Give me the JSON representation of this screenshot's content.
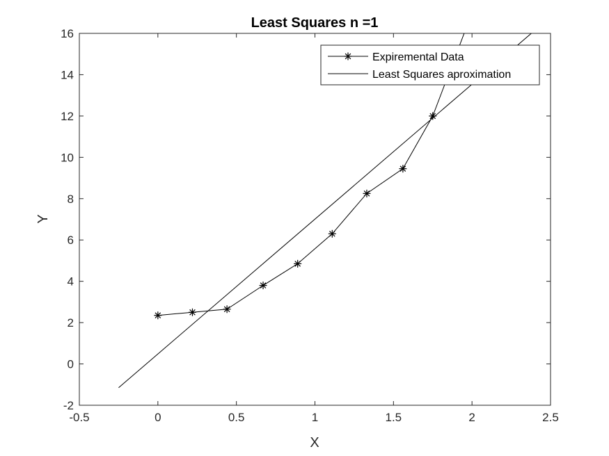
{
  "chart_data": {
    "type": "line",
    "title": "Least Squares n =1",
    "xlabel": "X",
    "ylabel": "Y",
    "xlim": [
      -0.5,
      2.5
    ],
    "ylim": [
      -2,
      16
    ],
    "xticks": [
      -0.5,
      0,
      0.5,
      1,
      1.5,
      2,
      2.5
    ],
    "yticks": [
      -2,
      0,
      2,
      4,
      6,
      8,
      10,
      12,
      14,
      16
    ],
    "xtick_labels": [
      "-0.5",
      "0",
      "0.5",
      "1",
      "1.5",
      "2",
      "2.5"
    ],
    "ytick_labels": [
      "-2",
      "0",
      "2",
      "4",
      "6",
      "8",
      "10",
      "12",
      "14",
      "16"
    ],
    "grid": false,
    "legend_position": "top-right",
    "series": [
      {
        "name": "Expiremental Data",
        "marker": "asterisk",
        "color": "#000000",
        "x": [
          0,
          0.22,
          0.44,
          0.67,
          0.89,
          1.11,
          1.33,
          1.56,
          1.75,
          2.0
        ],
        "y": [
          2.35,
          2.5,
          2.65,
          3.8,
          4.85,
          6.3,
          8.25,
          9.45,
          12.0,
          17.0
        ]
      },
      {
        "name": "Least Squares aproximation",
        "marker": "none",
        "color": "#000000",
        "x": [
          -0.25,
          2.5
        ],
        "y": [
          -1.15,
          16.8
        ]
      }
    ]
  }
}
